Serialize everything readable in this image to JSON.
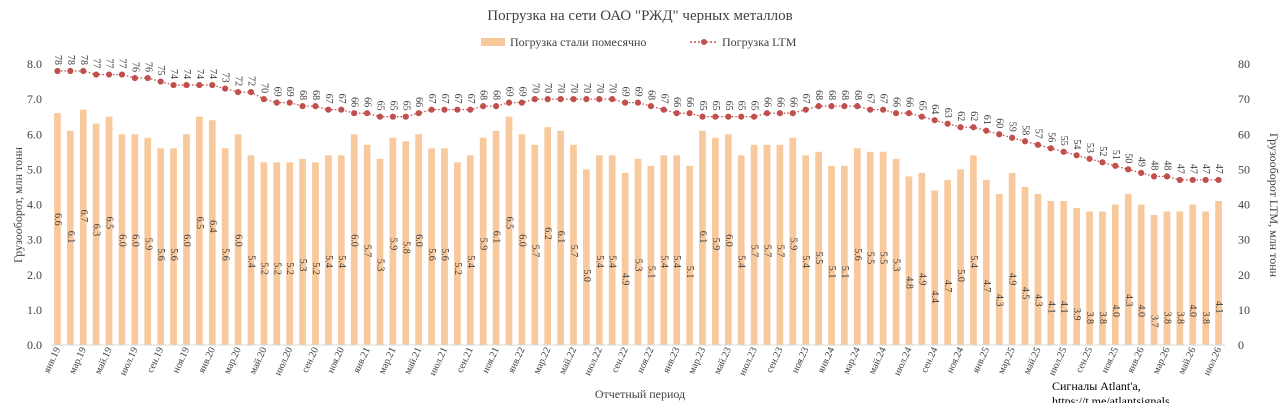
{
  "chart_data": {
    "type": "bar",
    "title": "Погрузка на сети ОАО \"РЖД\" черных металлов",
    "xlabel": "Отчетный период",
    "ylabel": "Грузооборот, млн тонн",
    "y2label": "Грузооборот LTM, млн тонн",
    "ylim": [
      0,
      8
    ],
    "y2lim": [
      0,
      80
    ],
    "yticks": [
      "0.0",
      "1.0",
      "2.0",
      "3.0",
      "4.0",
      "5.0",
      "6.0",
      "7.0",
      "8.0"
    ],
    "y2ticks": [
      "0",
      "10",
      "20",
      "30",
      "40",
      "50",
      "60",
      "70",
      "80"
    ],
    "grid": false,
    "legend_position": "top",
    "x_tick_labels": [
      "янв.19",
      "мар.19",
      "май.19",
      "июл.19",
      "сен.19",
      "ноя.19",
      "янв.20",
      "мар.20",
      "май.20",
      "июл.20",
      "сен.20",
      "ноя.20",
      "янв.21",
      "мар.21",
      "май.21",
      "июл.21",
      "сен.21",
      "ноя.21",
      "янв.22",
      "мар.22",
      "май.22",
      "июл.22",
      "сен.22",
      "ноя.22",
      "янв.23",
      "мар.23",
      "май.23",
      "июл.23",
      "сен.23",
      "ноя.23",
      "янв.24",
      "мар.24",
      "май.24",
      "июл.24",
      "сен.24",
      "ноя.24",
      "янв.25",
      "мар.25",
      "май.25",
      "июл.25",
      "сен.25",
      "ноя.25",
      "янв.26",
      "мар.26",
      "май.26",
      "июл.26"
    ],
    "series": [
      {
        "name": "Погрузка стали помесячно",
        "type": "bar",
        "color": "#F8C99C",
        "values": [
          6.6,
          6.1,
          6.7,
          6.3,
          6.5,
          6.0,
          6.0,
          5.9,
          5.6,
          5.6,
          6.0,
          6.5,
          6.4,
          5.6,
          6.0,
          5.4,
          5.2,
          5.2,
          5.2,
          5.3,
          5.2,
          5.4,
          5.4,
          6.0,
          5.7,
          5.3,
          5.9,
          5.8,
          6.0,
          5.6,
          5.6,
          5.2,
          5.4,
          5.9,
          6.1,
          6.5,
          6.0,
          5.7,
          6.2,
          6.1,
          5.7,
          5.0,
          5.4,
          5.4,
          4.9,
          5.3,
          5.1,
          5.4,
          5.4,
          5.1,
          6.1,
          5.9,
          6.0,
          5.4,
          5.7,
          5.7,
          5.7,
          5.9,
          5.4,
          5.5,
          5.1,
          5.1,
          5.6,
          5.5,
          5.5,
          5.3,
          4.8,
          4.9,
          4.4,
          4.7,
          5.0,
          5.4,
          4.7,
          4.3,
          4.9,
          4.5,
          4.3,
          4.1,
          4.1,
          3.9,
          3.8,
          3.8,
          4.0,
          4.3,
          4.0,
          3.7,
          3.8,
          3.8,
          4.0,
          3.8,
          4.1
        ]
      },
      {
        "name": "Погрузка LTM",
        "type": "line",
        "color": "#C0504D",
        "values": [
          78,
          78,
          78,
          77,
          77,
          77,
          76,
          76,
          75,
          74,
          74,
          74,
          74,
          73,
          72,
          72,
          70,
          69,
          69,
          68,
          68,
          67,
          67,
          66,
          66,
          65,
          65,
          65,
          66,
          67,
          67,
          67,
          67,
          68,
          68,
          69,
          69,
          70,
          70,
          70,
          70,
          70,
          70,
          70,
          69,
          69,
          68,
          67,
          66,
          66,
          65,
          65,
          65,
          65,
          65,
          66,
          66,
          66,
          67,
          68,
          68,
          68,
          68,
          67,
          67,
          66,
          66,
          65,
          64,
          63,
          62,
          62,
          61,
          60,
          59,
          58,
          57,
          56,
          55,
          54,
          53,
          52,
          51,
          50,
          49,
          48,
          48,
          47,
          47,
          47,
          47
        ]
      }
    ]
  },
  "watermark": {
    "line1": "Сигналы Atlant'a,",
    "line2": "https://t.me/atlantsignals"
  }
}
